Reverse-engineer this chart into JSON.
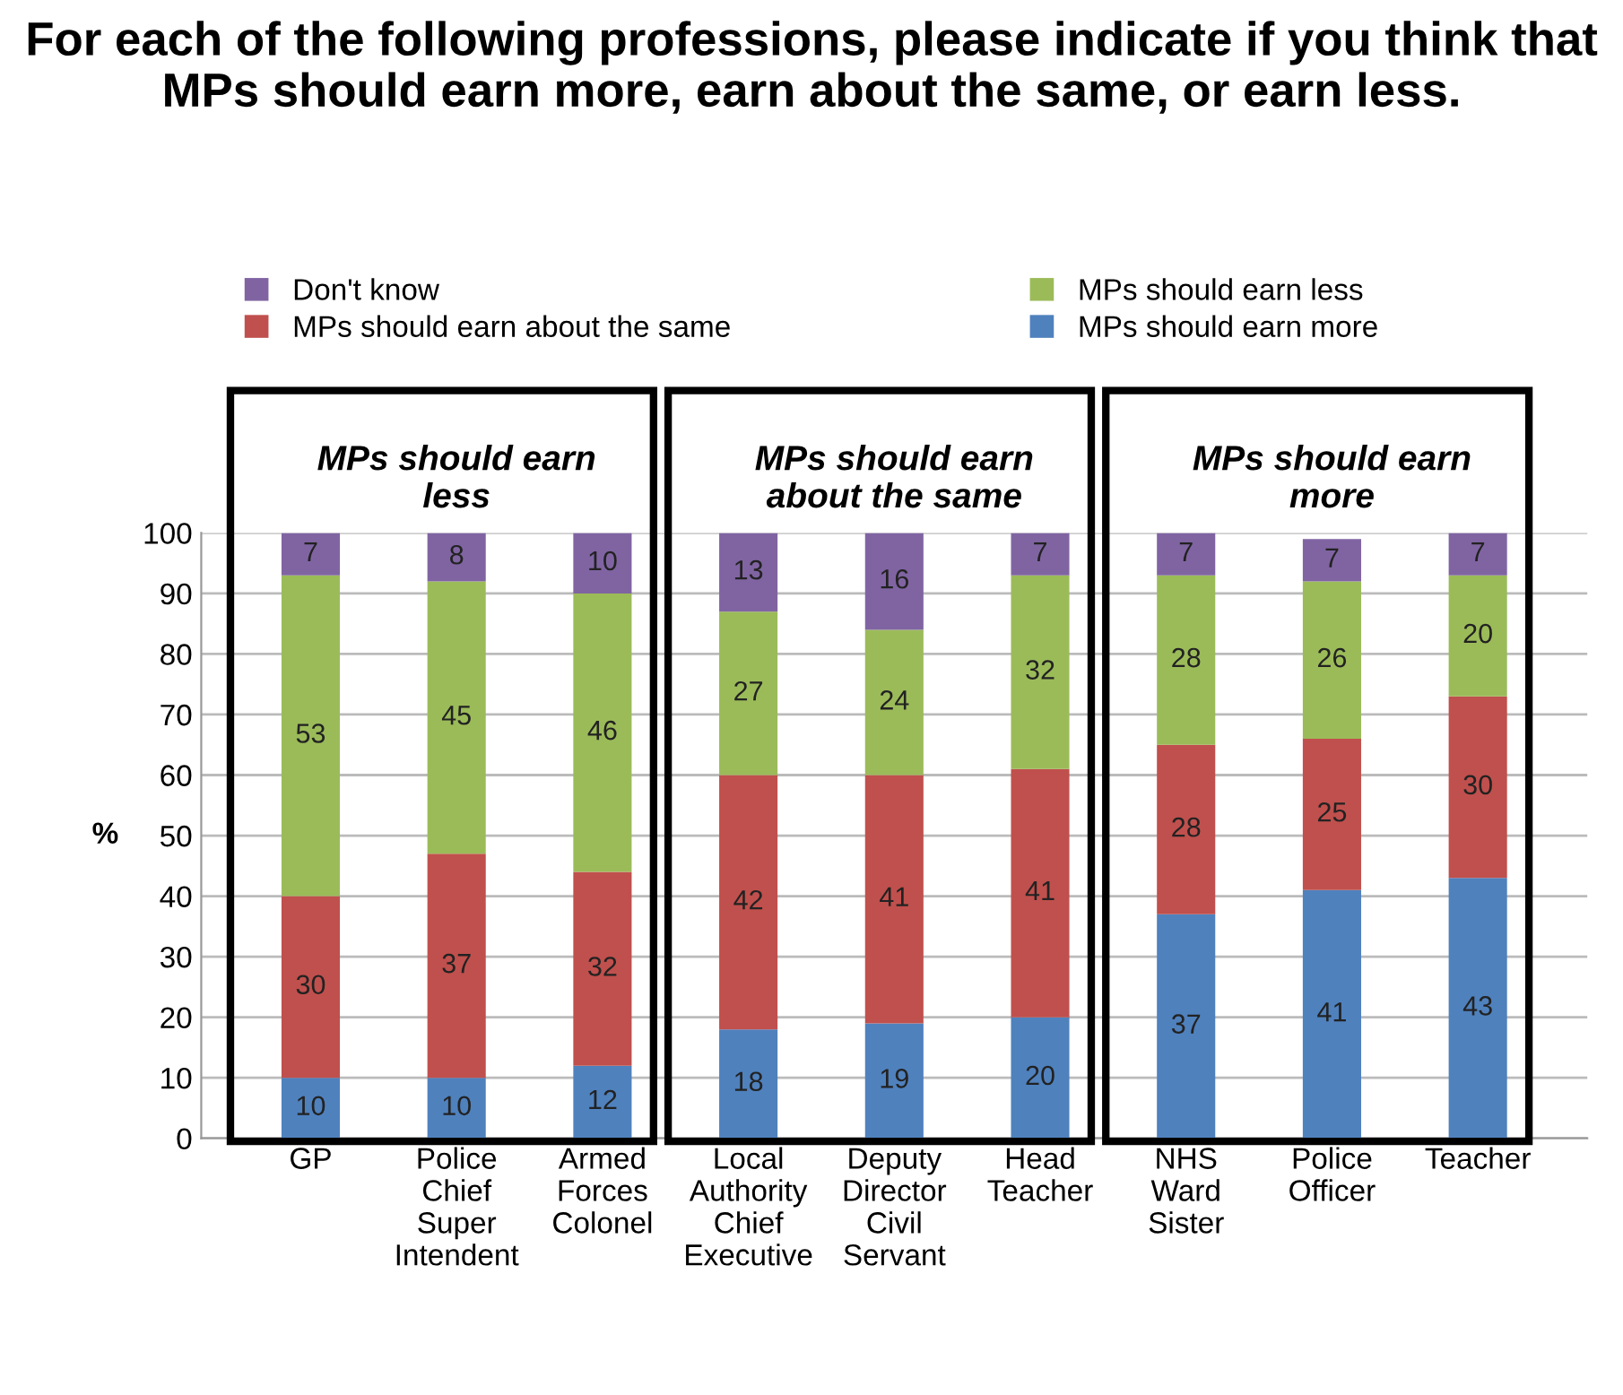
{
  "chart_data": {
    "type": "bar",
    "stacked": true,
    "title": "For each of the following professions, please indicate if you think that MPs should earn more, earn about the same, or earn less.",
    "ylabel": "%",
    "categories": [
      "GP",
      "Police\nChief\nSuper\nIntendent",
      "Armed\nForces\nColonel",
      "Local\nAuthority\nChief\nExecutive",
      "Deputy\nDirector\nCivil\nServant",
      "Head\nTeacher",
      "NHS\nWard\nSister",
      "Police\nOfficer",
      "Teacher"
    ],
    "series": [
      {
        "name": "MPs should earn more",
        "color": "#4f81bd",
        "values": [
          10,
          10,
          12,
          18,
          19,
          20,
          37,
          41,
          43
        ]
      },
      {
        "name": "MPs should earn about the same",
        "color": "#c0504d",
        "values": [
          30,
          37,
          32,
          42,
          41,
          41,
          28,
          25,
          30
        ]
      },
      {
        "name": "MPs should earn less",
        "color": "#9bbb59",
        "values": [
          53,
          45,
          46,
          27,
          24,
          32,
          28,
          26,
          20
        ]
      },
      {
        "name": "Don't know",
        "color": "#8064a2",
        "values": [
          7,
          8,
          10,
          13,
          16,
          7,
          7,
          7,
          7
        ]
      }
    ],
    "annotations": [
      "MPs should earn\nless",
      "MPs should earn\nabout the same",
      "MPs should earn\nmore"
    ],
    "ylim": [
      0,
      100
    ],
    "yticks": [
      0,
      10,
      20,
      30,
      40,
      50,
      60,
      70,
      80,
      90,
      100
    ],
    "grid": "y",
    "legend": "top",
    "data_labels": true
  }
}
